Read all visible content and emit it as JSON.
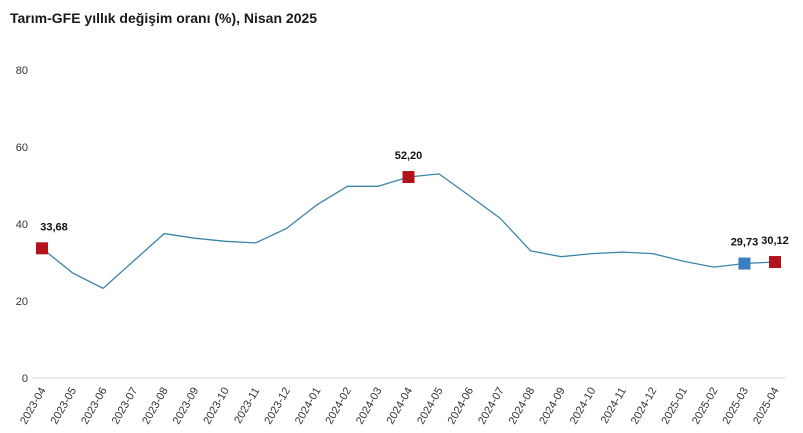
{
  "chart_data": {
    "type": "line",
    "title": "Tarım-GFE yıllık değişim oranı (%), Nisan 2025",
    "xlabel": "",
    "ylabel": "",
    "ylim": [
      0,
      80
    ],
    "yticks": [
      "0",
      "20",
      "40",
      "60",
      "80"
    ],
    "grid": false,
    "categories": [
      "2023-04",
      "2023-05",
      "2023-06",
      "2023-07",
      "2023-08",
      "2023-09",
      "2023-10",
      "2023-11",
      "2023-12",
      "2024-01",
      "2024-02",
      "2024-03",
      "2024-04",
      "2024-05",
      "2024-06",
      "2024-07",
      "2024-08",
      "2024-09",
      "2024-10",
      "2024-11",
      "2024-12",
      "2025-01",
      "2025-02",
      "2025-03",
      "2025-04"
    ],
    "series": [
      {
        "values": [
          33.68,
          27.3,
          23.3,
          30.4,
          37.5,
          36.3,
          35.5,
          35.1,
          38.8,
          45.0,
          49.8,
          49.8,
          52.2,
          53.0,
          47.3,
          41.5,
          33.0,
          31.5,
          32.3,
          32.7,
          32.3,
          30.3,
          28.8,
          29.73,
          30.12
        ],
        "color": "#3a86a8"
      }
    ],
    "highlights": [
      {
        "index": 0,
        "label": "33,68",
        "color": "#b3121b"
      },
      {
        "index": 12,
        "label": "52,20",
        "color": "#b3121b"
      },
      {
        "index": 23,
        "label": "29,73",
        "color": "#3a7ebf"
      },
      {
        "index": 24,
        "label": "30,12",
        "color": "#b3121b"
      }
    ]
  }
}
